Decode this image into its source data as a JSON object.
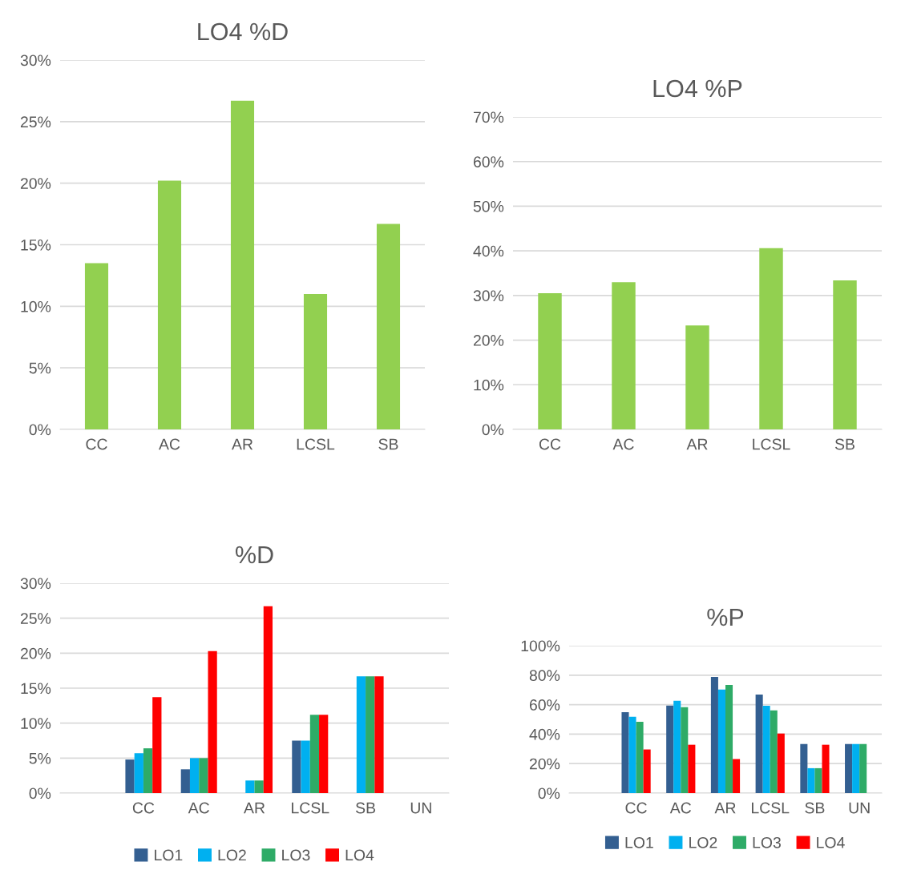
{
  "chart_data": [
    {
      "type": "bar",
      "title": "LO4 %D",
      "categories": [
        "CC",
        "AC",
        "AR",
        "LCSL",
        "SB"
      ],
      "values": [
        13.5,
        20.2,
        26.7,
        11.0,
        16.7
      ],
      "color": "#92d050",
      "ylim": [
        0,
        30
      ],
      "yticks": [
        {
          "value": 0,
          "label": "0%"
        },
        {
          "value": 5,
          "label": "5%"
        },
        {
          "value": 10,
          "label": "10%"
        },
        {
          "value": 15,
          "label": "15%"
        },
        {
          "value": 20,
          "label": "20%"
        },
        {
          "value": 25,
          "label": "25%"
        },
        {
          "value": 30,
          "label": "30%"
        }
      ],
      "grid": "y"
    },
    {
      "type": "bar",
      "title": "LO4 %P",
      "categories": [
        "CC",
        "AC",
        "AR",
        "LCSL",
        "SB"
      ],
      "values": [
        30.5,
        33.0,
        23.3,
        40.6,
        33.4
      ],
      "color": "#92d050",
      "ylim": [
        0,
        70
      ],
      "yticks": [
        {
          "value": 0,
          "label": "0%"
        },
        {
          "value": 10,
          "label": "10%"
        },
        {
          "value": 20,
          "label": "20%"
        },
        {
          "value": 30,
          "label": "30%"
        },
        {
          "value": 40,
          "label": "40%"
        },
        {
          "value": 50,
          "label": "50%"
        },
        {
          "value": 60,
          "label": "60%"
        },
        {
          "value": 70,
          "label": "70%"
        }
      ],
      "grid": "y"
    },
    {
      "type": "bar",
      "title": "%D",
      "categories": [
        null,
        "CC",
        "AC",
        "AR",
        "LCSL",
        "SB",
        "UN"
      ],
      "series": [
        {
          "name": "LO1",
          "color": "#335f91",
          "values": [
            null,
            4.8,
            3.4,
            null,
            7.5,
            null,
            null
          ]
        },
        {
          "name": "LO2",
          "color": "#00b0f0",
          "values": [
            null,
            5.7,
            5.0,
            1.8,
            7.5,
            16.7,
            null
          ]
        },
        {
          "name": "LO3",
          "color": "#2eab67",
          "values": [
            null,
            6.4,
            5.0,
            1.8,
            11.2,
            16.7,
            null
          ]
        },
        {
          "name": "LO4",
          "color": "#ff0000",
          "values": [
            null,
            13.7,
            20.3,
            26.7,
            11.2,
            16.7,
            null
          ]
        }
      ],
      "ylim": [
        0,
        30
      ],
      "yticks": [
        {
          "value": 0,
          "label": "0%"
        },
        {
          "value": 5,
          "label": "5%"
        },
        {
          "value": 10,
          "label": "10%"
        },
        {
          "value": 15,
          "label": "15%"
        },
        {
          "value": 20,
          "label": "20%"
        },
        {
          "value": 25,
          "label": "25%"
        },
        {
          "value": 30,
          "label": "30%"
        }
      ],
      "grid": "y",
      "legend": "bottom"
    },
    {
      "type": "bar",
      "title": "%P",
      "categories": [
        null,
        "CC",
        "AC",
        "AR",
        "LCSL",
        "SB",
        "UN"
      ],
      "series": [
        {
          "name": "LO1",
          "color": "#335f91",
          "values": [
            null,
            54.9,
            59.4,
            78.8,
            66.9,
            33.3,
            33.3
          ]
        },
        {
          "name": "LO2",
          "color": "#00b0f0",
          "values": [
            null,
            51.8,
            62.6,
            70.2,
            59.2,
            16.9,
            33.3
          ]
        },
        {
          "name": "LO3",
          "color": "#2eab67",
          "values": [
            null,
            48.4,
            58.3,
            73.4,
            56.1,
            16.9,
            33.3
          ]
        },
        {
          "name": "LO4",
          "color": "#ff0000",
          "values": [
            null,
            29.6,
            32.8,
            23.1,
            40.4,
            32.8,
            null
          ]
        }
      ],
      "ylim": [
        0,
        100
      ],
      "yticks": [
        {
          "value": 0,
          "label": "0%"
        },
        {
          "value": 20,
          "label": "20%"
        },
        {
          "value": 40,
          "label": "40%"
        },
        {
          "value": 60,
          "label": "60%"
        },
        {
          "value": 80,
          "label": "80%"
        },
        {
          "value": 100,
          "label": "100%"
        }
      ],
      "grid": "y",
      "legend": "bottom"
    }
  ]
}
